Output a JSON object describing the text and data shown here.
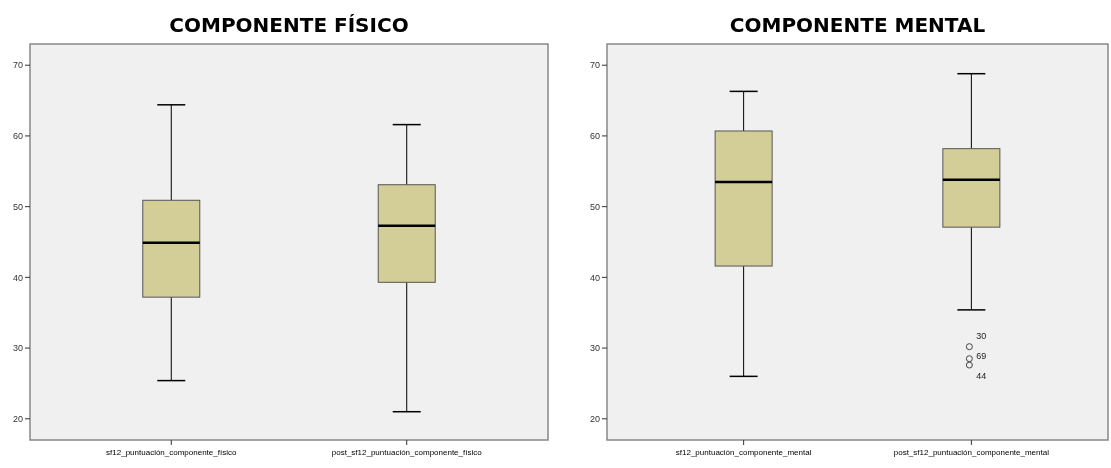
{
  "chart_data": [
    {
      "type": "box",
      "title": "COMPONENTE FÍSICO",
      "categories": [
        "sf12_puntuación_componente_físico",
        "post_sf12_puntuación_componente_físico"
      ],
      "color": "#d3ce98",
      "boxes": [
        {
          "low": 25.4,
          "q1": 37.2,
          "median": 44.9,
          "q3": 50.9,
          "high": 64.4
        },
        {
          "low": 21.0,
          "q1": 39.3,
          "median": 47.3,
          "q3": 53.1,
          "high": 61.6
        }
      ],
      "ylim": [
        17,
        73
      ],
      "yticks": [
        20,
        30,
        40,
        50,
        60,
        70
      ],
      "grid": false
    },
    {
      "type": "box",
      "title": "COMPONENTE MENTAL",
      "categories": [
        "sf12_puntuación_componente_mental",
        "post_sf12_puntuación_componente_mental"
      ],
      "color": "#d3ce98",
      "boxes": [
        {
          "low": 26.0,
          "q1": 41.6,
          "median": 53.5,
          "q3": 60.7,
          "high": 66.3
        },
        {
          "low": 35.4,
          "q1": 47.1,
          "median": 53.8,
          "q3": 58.2,
          "high": 68.8,
          "outliers": [
            30.2,
            28.5,
            27.6
          ]
        }
      ],
      "annotations": [
        "30",
        "69",
        "44"
      ],
      "ylim": [
        17,
        73
      ],
      "yticks": [
        20,
        30,
        40,
        50,
        60,
        70
      ],
      "grid": false
    }
  ]
}
